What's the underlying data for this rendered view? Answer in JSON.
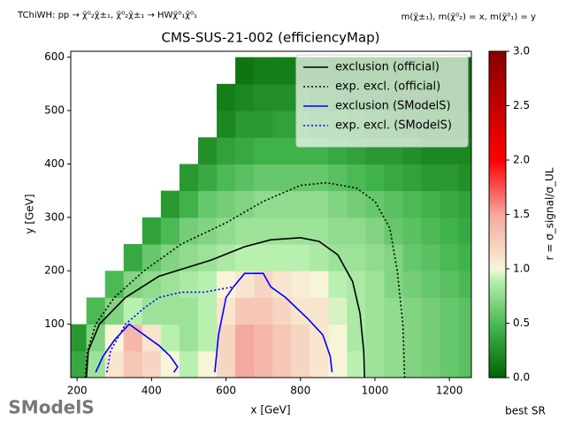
{
  "chart_data": {
    "type": "heatmap",
    "title": "CMS-SUS-21-002 (efficiencyMap)",
    "subtitle": "TChiWH: pp → χ̃⁰₂χ̃±₁, χ̃⁰₂χ̃±₁ → HWχ̃⁰₁χ̃⁰₁",
    "mass_note": "m(χ̃±₁), m(χ̃⁰₂) = x, m(χ̃⁰₁) = y",
    "x_label": "x [GeV]",
    "y_label": "y [GeV]",
    "colorbar_label": "r = σ_signal/σ_UL",
    "footer": "best SR",
    "logo": "SModelS",
    "xlim": [
      183,
      1259
    ],
    "ylim": [
      0,
      611
    ],
    "xticks": [
      200,
      400,
      600,
      800,
      1000,
      1200
    ],
    "yticks": [
      100,
      200,
      300,
      400,
      500,
      600
    ],
    "clim": [
      0,
      3
    ],
    "cticks": [
      {
        "value": 0,
        "label": "0.0"
      },
      {
        "value": 0.5,
        "label": "0.5"
      },
      {
        "value": 1,
        "label": "1.0"
      },
      {
        "value": 1.5,
        "label": "1.5"
      },
      {
        "value": 2,
        "label": "2.0"
      },
      {
        "value": 2.5,
        "label": "2.5"
      },
      {
        "value": 3,
        "label": "3.0"
      }
    ],
    "colorscale": [
      [
        0,
        "#006400"
      ],
      [
        0.45,
        "#3fb24a"
      ],
      [
        0.9,
        "#b8f0b0"
      ],
      [
        1.0,
        "#f8f4d8"
      ],
      [
        1.5,
        "#f4a8a0"
      ],
      [
        2.0,
        "#ff0000"
      ],
      [
        3.0,
        "#880000"
      ]
    ],
    "x": [
      200,
      250,
      300,
      350,
      400,
      450,
      500,
      550,
      600,
      650,
      700,
      750,
      800,
      850,
      900,
      950,
      1000,
      1050,
      1100,
      1150,
      1200,
      1250
    ],
    "y": [
      25,
      75,
      125,
      175,
      225,
      275,
      325,
      375,
      425,
      475,
      525,
      575
    ],
    "z": [
      [
        0.4,
        0.8,
        1.1,
        1.3,
        1.2,
        1.0,
        0.9,
        1.0,
        1.2,
        1.5,
        1.4,
        1.3,
        1.2,
        1.1,
        1.0,
        0.9,
        0.8,
        0.75,
        0.7,
        0.65,
        0.6,
        0.55
      ],
      [
        0.3,
        0.7,
        1.0,
        1.4,
        1.1,
        0.9,
        0.8,
        0.9,
        1.2,
        1.5,
        1.4,
        1.3,
        1.2,
        1.1,
        1.0,
        0.85,
        0.8,
        0.75,
        0.7,
        0.65,
        0.6,
        0.55
      ],
      [
        null,
        0.5,
        0.7,
        0.9,
        0.8,
        0.8,
        0.8,
        0.9,
        1.1,
        1.3,
        1.3,
        1.2,
        1.1,
        1.1,
        0.95,
        0.85,
        0.8,
        0.75,
        0.7,
        0.65,
        0.6,
        0.55
      ],
      [
        null,
        null,
        0.5,
        0.7,
        0.75,
        0.8,
        0.85,
        0.9,
        1.0,
        1.1,
        1.2,
        1.1,
        1.05,
        1.0,
        0.9,
        0.85,
        0.8,
        0.7,
        0.65,
        0.6,
        0.55,
        0.5
      ],
      [
        null,
        null,
        null,
        0.4,
        0.6,
        0.7,
        0.75,
        0.8,
        0.85,
        0.9,
        0.9,
        0.9,
        0.9,
        0.85,
        0.8,
        0.8,
        0.75,
        0.7,
        0.6,
        0.55,
        0.5,
        0.45
      ],
      [
        null,
        null,
        null,
        null,
        0.35,
        0.5,
        0.65,
        0.7,
        0.75,
        0.8,
        0.8,
        0.8,
        0.8,
        0.8,
        0.75,
        0.75,
        0.7,
        0.6,
        0.55,
        0.5,
        0.45,
        0.4
      ],
      [
        null,
        null,
        null,
        null,
        null,
        0.3,
        0.45,
        0.6,
        0.65,
        0.7,
        0.75,
        0.75,
        0.75,
        0.75,
        0.7,
        0.65,
        0.6,
        0.55,
        0.5,
        0.45,
        0.4,
        0.35
      ],
      [
        null,
        null,
        null,
        null,
        null,
        null,
        0.3,
        0.4,
        0.5,
        0.55,
        0.6,
        0.6,
        0.6,
        0.6,
        0.55,
        0.5,
        0.45,
        0.4,
        0.35,
        0.3,
        0.3,
        0.25
      ],
      [
        null,
        null,
        null,
        null,
        null,
        null,
        null,
        0.25,
        0.35,
        0.4,
        0.45,
        0.45,
        0.45,
        0.45,
        0.4,
        0.35,
        0.3,
        0.3,
        0.25,
        0.2,
        0.2,
        0.2
      ],
      [
        null,
        null,
        null,
        null,
        null,
        null,
        null,
        null,
        0.2,
        0.3,
        0.3,
        0.35,
        0.35,
        0.3,
        0.3,
        0.25,
        0.2,
        0.2,
        0.15,
        0.15,
        0.15,
        0.15
      ],
      [
        null,
        null,
        null,
        null,
        null,
        null,
        null,
        null,
        0.15,
        0.2,
        0.25,
        0.25,
        0.25,
        0.2,
        0.2,
        0.15,
        0.15,
        0.1,
        0.1,
        0.1,
        0.1,
        0.1
      ],
      [
        null,
        null,
        null,
        null,
        null,
        null,
        null,
        null,
        null,
        0.1,
        0.15,
        0.15,
        0.15,
        0.15,
        0.1,
        0.1,
        0.1,
        0.1,
        0.1,
        0.1,
        0.1,
        0.1
      ]
    ],
    "legend": "upper right",
    "series": [
      {
        "name": "exclusion (official)",
        "color": "#000000",
        "dash": "solid",
        "x": [
          225,
          230,
          260,
          330,
          420,
          560,
          650,
          720,
          800,
          850,
          900,
          940,
          960,
          970,
          972
        ],
        "y": [
          0,
          50,
          100,
          150,
          190,
          220,
          245,
          258,
          262,
          255,
          230,
          180,
          120,
          50,
          0
        ]
      },
      {
        "name": "exp. excl. (official)",
        "color": "#000000",
        "dash": "dotted",
        "x": [
          222,
          228,
          250,
          300,
          380,
          480,
          600,
          700,
          800,
          870,
          950,
          1000,
          1040,
          1060,
          1075,
          1080
        ],
        "y": [
          0,
          50,
          100,
          150,
          200,
          250,
          290,
          330,
          360,
          365,
          355,
          330,
          280,
          200,
          100,
          0
        ]
      },
      {
        "name": "exclusion (SModelS)",
        "color": "#0000ff",
        "dash": "solid",
        "x": [
          250,
          270,
          300,
          340,
          380,
          420,
          450,
          470,
          460,
          null,
          570,
          580,
          600,
          620,
          650,
          700,
          720,
          760,
          790,
          820,
          860,
          880,
          885
        ],
        "y": [
          10,
          40,
          70,
          100,
          80,
          60,
          40,
          20,
          10,
          null,
          10,
          80,
          150,
          170,
          195,
          195,
          170,
          150,
          130,
          110,
          80,
          40,
          10
        ]
      },
      {
        "name": "exp. excl. (SModelS)",
        "color": "#0000ff",
        "dash": "dotted",
        "x": [
          280,
          290,
          330,
          380,
          420,
          480,
          540,
          580,
          620
        ],
        "y": [
          10,
          50,
          100,
          130,
          150,
          160,
          160,
          165,
          170
        ]
      }
    ]
  }
}
